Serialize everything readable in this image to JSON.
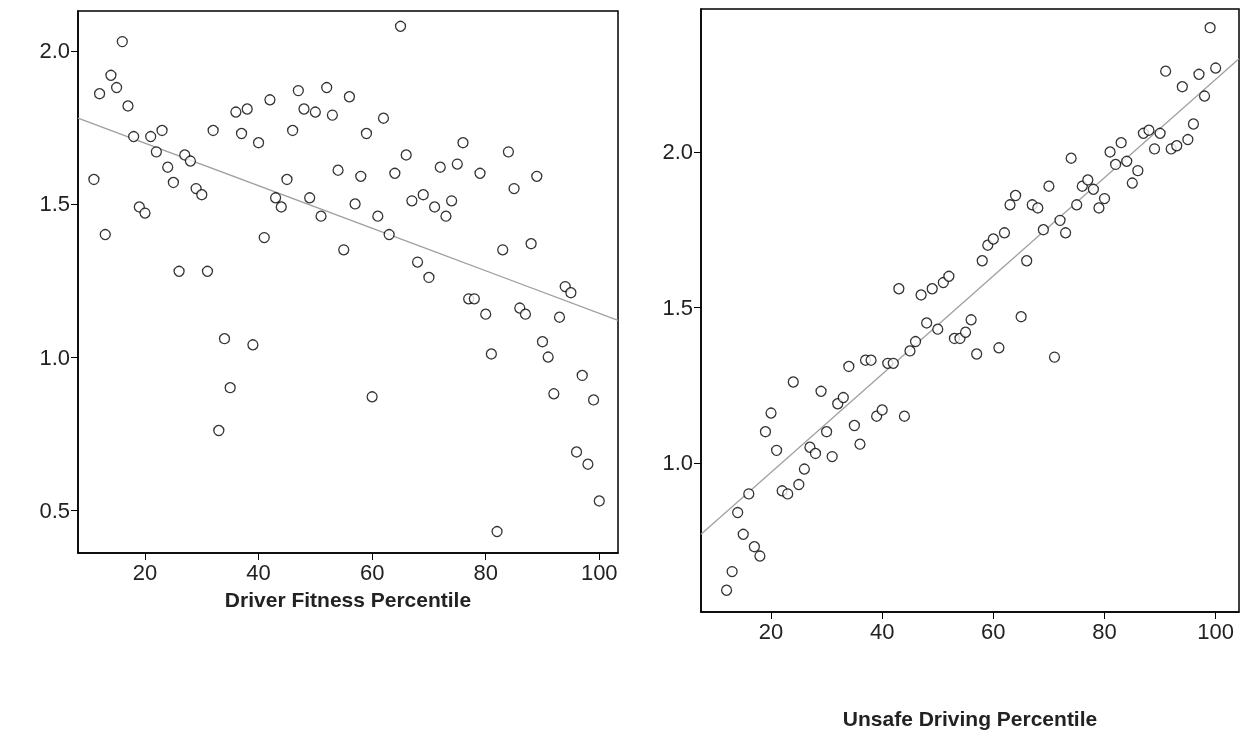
{
  "chart_data": [
    {
      "type": "scatter",
      "xlabel": "Driver Fitness Percentile",
      "xlim": [
        8.2,
        103.3
      ],
      "ylim": [
        0.36,
        2.13
      ],
      "xticks": [
        20,
        40,
        60,
        80,
        100
      ],
      "yticks": [
        {
          "value": 0.5,
          "label": "0.5"
        },
        {
          "value": 1,
          "label": "1.0"
        },
        {
          "value": 1.5,
          "label": "1.5"
        },
        {
          "value": 2,
          "label": "2.0"
        }
      ],
      "grid": false,
      "series": [
        {
          "color": "#000000",
          "marker": "circle",
          "x": [
            11,
            12,
            13,
            14,
            15,
            16,
            17,
            18,
            19,
            20,
            21,
            22,
            23,
            24,
            25,
            26,
            27,
            28,
            29,
            30,
            31,
            32,
            33,
            34,
            35,
            36,
            37,
            38,
            39,
            40,
            41,
            42,
            43,
            44,
            45,
            46,
            47,
            48,
            49,
            50,
            51,
            52,
            53,
            54,
            55,
            56,
            57,
            58,
            59,
            60,
            61,
            62,
            63,
            64,
            65,
            66,
            67,
            68,
            69,
            70,
            71,
            72,
            73,
            74,
            75,
            76,
            77,
            78,
            79,
            80,
            81,
            82,
            83,
            84,
            85,
            86,
            87,
            88,
            89,
            90,
            91,
            92,
            93,
            94,
            95,
            96,
            97,
            98,
            99,
            100
          ],
          "values": [
            1.58,
            1.86,
            1.4,
            1.92,
            1.88,
            2.03,
            1.82,
            1.72,
            1.49,
            1.47,
            1.72,
            1.67,
            1.74,
            1.62,
            1.57,
            1.28,
            1.66,
            1.64,
            1.55,
            1.53,
            1.28,
            1.74,
            0.76,
            1.06,
            0.9,
            1.8,
            1.73,
            1.81,
            1.04,
            1.7,
            1.39,
            1.84,
            1.52,
            1.49,
            1.58,
            1.74,
            1.87,
            1.81,
            1.52,
            1.8,
            1.46,
            1.88,
            1.79,
            1.61,
            1.35,
            1.85,
            1.5,
            1.59,
            1.73,
            0.87,
            1.46,
            1.78,
            1.4,
            1.6,
            2.08,
            1.66,
            1.51,
            1.31,
            1.53,
            1.26,
            1.49,
            1.62,
            1.46,
            1.51,
            1.63,
            1.7,
            1.19,
            1.19,
            1.6,
            1.14,
            1.01,
            0.43,
            1.35,
            1.67,
            1.55,
            1.16,
            1.14,
            1.37,
            1.59,
            1.05,
            1,
            0.88,
            1.13,
            1.23,
            1.21,
            0.69,
            0.94,
            0.65,
            0.86,
            0.53
          ]
        },
        {
          "type": "line",
          "color": "#a0a0a0",
          "marker": "none",
          "x": [
            8.2,
            103.3
          ],
          "values": [
            1.78,
            1.12
          ]
        }
      ]
    },
    {
      "type": "scatter",
      "xlabel": "Unsafe Driving Percentile",
      "xlim": [
        7.4,
        104.2
      ],
      "ylim": [
        0.52,
        2.46
      ],
      "xticks": [
        20,
        40,
        60,
        80,
        100
      ],
      "yticks": [
        {
          "value": 1,
          "label": "1.0"
        },
        {
          "value": 1.5,
          "label": "1.5"
        },
        {
          "value": 2,
          "label": "2.0"
        }
      ],
      "grid": false,
      "series": [
        {
          "color": "#000000",
          "marker": "circle",
          "x": [
            12,
            13,
            14,
            15,
            16,
            17,
            18,
            19,
            20,
            21,
            22,
            23,
            24,
            25,
            26,
            27,
            28,
            29,
            30,
            31,
            32,
            33,
            34,
            35,
            36,
            37,
            38,
            39,
            40,
            41,
            42,
            43,
            44,
            45,
            46,
            47,
            48,
            49,
            50,
            51,
            52,
            53,
            54,
            55,
            56,
            57,
            58,
            59,
            60,
            61,
            62,
            63,
            64,
            65,
            66,
            67,
            68,
            69,
            70,
            71,
            72,
            73,
            74,
            75,
            76,
            77,
            78,
            79,
            80,
            81,
            82,
            83,
            84,
            85,
            86,
            87,
            88,
            89,
            90,
            91,
            92,
            93,
            94,
            95,
            96,
            97,
            98,
            99,
            100
          ],
          "values": [
            0.59,
            0.65,
            0.84,
            0.77,
            0.9,
            0.73,
            0.7,
            1.1,
            1.16,
            1.04,
            0.91,
            0.9,
            1.26,
            0.93,
            0.98,
            1.05,
            1.03,
            1.23,
            1.1,
            1.02,
            1.19,
            1.21,
            1.31,
            1.12,
            1.06,
            1.33,
            1.33,
            1.15,
            1.17,
            1.32,
            1.32,
            1.56,
            1.15,
            1.36,
            1.39,
            1.54,
            1.45,
            1.56,
            1.43,
            1.58,
            1.6,
            1.4,
            1.4,
            1.42,
            1.46,
            1.35,
            1.65,
            1.7,
            1.72,
            1.37,
            1.74,
            1.83,
            1.86,
            1.47,
            1.65,
            1.83,
            1.82,
            1.75,
            1.89,
            1.34,
            1.78,
            1.74,
            1.98,
            1.83,
            1.89,
            1.91,
            1.88,
            1.82,
            1.85,
            2,
            1.96,
            2.03,
            1.97,
            1.9,
            1.94,
            2.06,
            2.07,
            2.01,
            2.06,
            2.26,
            2.01,
            2.02,
            2.21,
            2.04,
            2.09,
            2.25,
            2.18,
            2.4,
            2.27
          ]
        },
        {
          "type": "line",
          "color": "#a0a0a0",
          "marker": "none",
          "x": [
            7.4,
            104.2
          ],
          "values": [
            0.77,
            2.3
          ]
        }
      ]
    }
  ]
}
